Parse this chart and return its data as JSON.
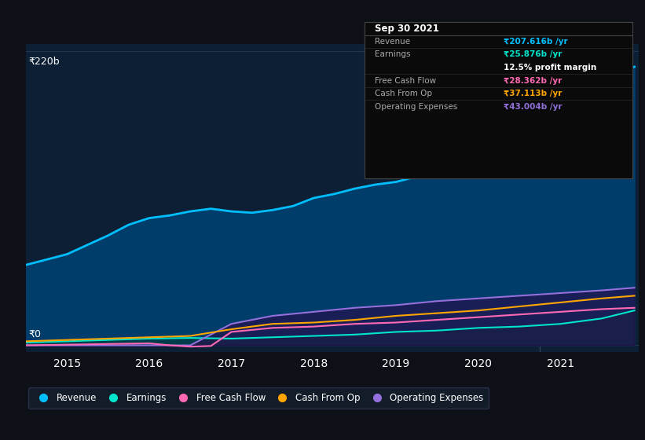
{
  "bg_color": "#0d1117",
  "plot_bg_color": "#0d1f35",
  "tooltip_title": "Sep 30 2021",
  "tooltip": {
    "Revenue": {
      "label": "Revenue",
      "value": "₹207.616b /yr",
      "color": "#00bfff"
    },
    "Earnings": {
      "label": "Earnings",
      "value": "₹25.876b /yr",
      "color": "#00e5cc"
    },
    "profit_margin": "12.5% profit margin",
    "Free Cash Flow": {
      "label": "Free Cash Flow",
      "value": "₹28.362b /yr",
      "color": "#ff69b4"
    },
    "Cash From Op": {
      "label": "Cash From Op",
      "value": "₹37.113b /yr",
      "color": "#ffa500"
    },
    "Operating Expenses": {
      "label": "Operating Expenses",
      "value": "₹43.004b /yr",
      "color": "#9370db"
    }
  },
  "ylabel_top": "₹220b",
  "ylabel_bottom": "₹0",
  "x_ticks": [
    2015,
    2016,
    2017,
    2018,
    2019,
    2020,
    2021
  ],
  "revenue": {
    "x": [
      2014.5,
      2015.0,
      2015.25,
      2015.5,
      2015.75,
      2016.0,
      2016.25,
      2016.5,
      2016.75,
      2017.0,
      2017.25,
      2017.5,
      2017.75,
      2018.0,
      2018.25,
      2018.5,
      2018.75,
      2019.0,
      2019.25,
      2019.5,
      2019.75,
      2020.0,
      2020.25,
      2020.5,
      2020.75,
      2021.0,
      2021.25,
      2021.5,
      2021.75,
      2021.9
    ],
    "y": [
      60,
      68,
      75,
      82,
      90,
      95,
      97,
      100,
      102,
      100,
      99,
      101,
      104,
      110,
      113,
      117,
      120,
      122,
      126,
      128,
      130,
      133,
      138,
      147,
      162,
      175,
      185,
      195,
      205,
      208
    ],
    "color": "#00bfff",
    "fill_color": "#003d6b",
    "linewidth": 2.0
  },
  "earnings": {
    "x": [
      2014.5,
      2015.0,
      2015.5,
      2016.0,
      2016.5,
      2017.0,
      2017.5,
      2018.0,
      2018.5,
      2019.0,
      2019.5,
      2020.0,
      2020.5,
      2021.0,
      2021.5,
      2021.9
    ],
    "y": [
      2,
      3,
      4,
      5,
      5.5,
      5,
      6,
      7,
      8,
      10,
      11,
      13,
      14,
      16,
      20,
      26
    ],
    "color": "#00e5cc",
    "fill_color": "#003d3d",
    "linewidth": 1.5
  },
  "free_cash_flow": {
    "x": [
      2014.5,
      2015.0,
      2015.5,
      2016.0,
      2016.25,
      2016.5,
      2016.75,
      2017.0,
      2017.5,
      2018.0,
      2018.5,
      2019.0,
      2019.5,
      2020.0,
      2020.5,
      2021.0,
      2021.5,
      2021.9
    ],
    "y": [
      0,
      0.5,
      1,
      1.5,
      0,
      -1,
      -0.5,
      10,
      13,
      14,
      16,
      17,
      19,
      21,
      23,
      25,
      27,
      28
    ],
    "color": "#ff69b4",
    "linewidth": 1.5
  },
  "cash_from_op": {
    "x": [
      2014.5,
      2015.0,
      2015.5,
      2016.0,
      2016.5,
      2017.0,
      2017.5,
      2018.0,
      2018.5,
      2019.0,
      2019.5,
      2020.0,
      2020.5,
      2021.0,
      2021.5,
      2021.9
    ],
    "y": [
      3,
      4,
      5,
      6,
      7,
      12,
      16,
      17,
      19,
      22,
      24,
      26,
      29,
      32,
      35,
      37
    ],
    "color": "#ffa500",
    "linewidth": 1.5
  },
  "operating_expenses": {
    "x": [
      2014.5,
      2015.0,
      2015.5,
      2016.0,
      2016.5,
      2017.0,
      2017.5,
      2018.0,
      2018.5,
      2019.0,
      2019.5,
      2020.0,
      2020.5,
      2021.0,
      2021.5,
      2021.9
    ],
    "y": [
      0,
      0,
      0,
      0,
      0,
      16,
      22,
      25,
      28,
      30,
      33,
      35,
      37,
      39,
      41,
      43
    ],
    "color": "#9370db",
    "fill_color": "#2a0a4a",
    "linewidth": 1.5
  },
  "legend": [
    {
      "label": "Revenue",
      "color": "#00bfff"
    },
    {
      "label": "Earnings",
      "color": "#00e5cc"
    },
    {
      "label": "Free Cash Flow",
      "color": "#ff69b4"
    },
    {
      "label": "Cash From Op",
      "color": "#ffa500"
    },
    {
      "label": "Operating Expenses",
      "color": "#9370db"
    }
  ],
  "vline_x": 2020.75,
  "xlim": [
    2014.5,
    2021.95
  ],
  "ylim": [
    -5,
    225
  ]
}
